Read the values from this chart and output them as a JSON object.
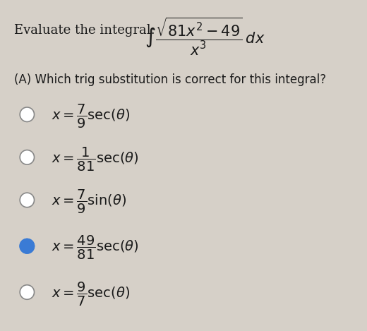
{
  "background_color": "#d6d0c8",
  "title_text": "Evaluate the integral:",
  "integral_formula": "$\\int \\dfrac{\\sqrt{81x^2 - 49}}{x^3}\\,dx$",
  "question_text": "(A) Which trig substitution is correct for this integral?",
  "options": [
    {
      "label": "$x = \\dfrac{7}{9}\\sec(\\theta)$",
      "selected": false
    },
    {
      "label": "$x = \\dfrac{1}{81}\\sec(\\theta)$",
      "selected": false
    },
    {
      "label": "$x = \\dfrac{7}{9}\\sin(\\theta)$",
      "selected": false
    },
    {
      "label": "$x = \\dfrac{49}{81}\\sec(\\theta)$",
      "selected": true
    },
    {
      "label": "$x = \\dfrac{9}{7}\\sec(\\theta)$",
      "selected": false
    }
  ],
  "radio_color_unselected": "#ffffff",
  "radio_color_selected": "#3a7bd5",
  "radio_edge_color": "#888888",
  "text_color": "#1a1a1a",
  "figsize": [
    5.2,
    4.69
  ],
  "dpi": 100
}
